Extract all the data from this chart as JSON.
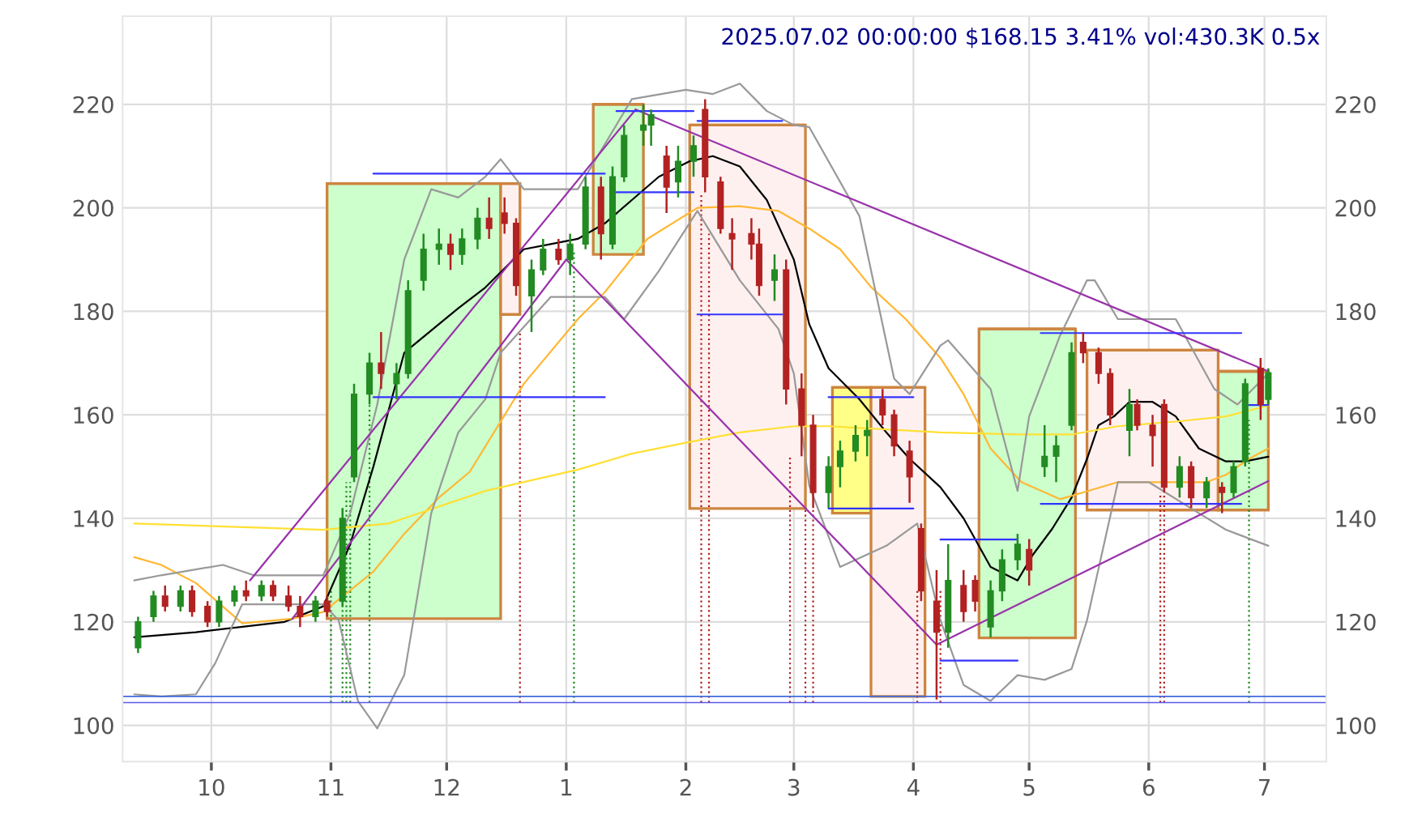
{
  "chart_data": {
    "type": "candlestick",
    "title": "2025.07.02 00:00:00 $168.15 3.41% vol:430.3K 0.5x",
    "x": [
      "2024-09-12",
      "2024-09-16",
      "2024-09-19",
      "2024-09-23",
      "2024-09-26",
      "2024-09-30",
      "2024-10-03",
      "2024-10-07",
      "2024-10-10",
      "2024-10-14",
      "2024-10-17",
      "2024-10-21",
      "2024-10-24",
      "2024-10-28",
      "2024-10-31",
      "2024-11-04",
      "2024-11-07",
      "2024-11-11",
      "2024-11-14",
      "2024-11-18",
      "2024-11-21",
      "2024-11-25",
      "2024-11-29",
      "2024-12-02",
      "2024-12-05",
      "2024-12-09",
      "2024-12-12",
      "2024-12-16",
      "2024-12-19",
      "2024-12-23",
      "2024-12-26",
      "2024-12-30",
      "2025-01-02",
      "2025-01-06",
      "2025-01-10",
      "2025-01-13",
      "2025-01-16",
      "2025-01-21",
      "2025-01-23",
      "2025-01-27",
      "2025-01-30",
      "2025-02-03",
      "2025-02-06",
      "2025-02-10",
      "2025-02-13",
      "2025-02-18",
      "2025-02-20",
      "2025-02-24",
      "2025-02-27",
      "2025-03-03",
      "2025-03-06",
      "2025-03-10",
      "2025-03-13",
      "2025-03-17",
      "2025-03-20",
      "2025-03-24",
      "2025-03-27",
      "2025-03-31",
      "2025-04-03",
      "2025-04-07",
      "2025-04-10",
      "2025-04-14",
      "2025-04-17",
      "2025-04-21",
      "2025-04-24",
      "2025-04-28",
      "2025-05-01",
      "2025-05-05",
      "2025-05-08",
      "2025-05-12",
      "2025-05-15",
      "2025-05-19",
      "2025-05-22",
      "2025-05-27",
      "2025-05-29",
      "2025-06-02",
      "2025-06-05",
      "2025-06-09",
      "2025-06-12",
      "2025-06-16",
      "2025-06-20",
      "2025-06-23",
      "2025-06-26",
      "2025-06-30",
      "2025-07-02"
    ],
    "ohlc": [
      [
        115,
        121,
        114,
        120
      ],
      [
        121,
        126,
        120,
        125
      ],
      [
        125,
        127,
        122,
        123
      ],
      [
        123,
        127,
        122,
        126
      ],
      [
        126,
        127,
        121,
        122
      ],
      [
        123,
        124,
        119,
        120
      ],
      [
        120,
        125,
        119,
        124
      ],
      [
        124,
        127,
        123,
        126
      ],
      [
        126,
        128,
        124,
        125
      ],
      [
        125,
        128,
        124,
        127
      ],
      [
        127,
        128,
        124,
        125
      ],
      [
        125,
        127,
        122,
        123
      ],
      [
        123,
        125,
        119,
        121
      ],
      [
        121,
        125,
        120,
        124
      ],
      [
        124,
        125,
        121,
        122
      ],
      [
        124,
        142,
        123,
        140
      ],
      [
        148,
        166,
        147,
        164
      ],
      [
        164,
        172,
        162,
        170
      ],
      [
        170,
        176,
        165,
        168
      ],
      [
        166,
        170,
        163,
        168
      ],
      [
        168,
        186,
        167,
        184
      ],
      [
        186,
        195,
        184,
        192
      ],
      [
        192,
        196,
        189,
        193
      ],
      [
        193,
        195,
        188,
        191
      ],
      [
        191,
        196,
        189,
        194
      ],
      [
        194,
        200,
        192,
        198
      ],
      [
        198,
        202,
        194,
        196
      ],
      [
        199,
        202,
        195,
        197
      ],
      [
        197,
        198,
        183,
        185
      ],
      [
        183,
        190,
        176,
        188
      ],
      [
        188,
        194,
        187,
        192
      ],
      [
        192,
        194,
        189,
        190
      ],
      [
        190,
        195,
        187,
        193
      ],
      [
        193,
        206,
        192,
        204
      ],
      [
        204,
        206,
        190,
        195
      ],
      [
        193,
        208,
        192,
        206
      ],
      [
        206,
        216,
        205,
        214
      ],
      [
        215,
        220,
        212,
        216
      ],
      [
        216,
        219,
        212,
        218
      ],
      [
        210,
        212,
        199,
        204
      ],
      [
        205,
        212,
        202,
        209
      ],
      [
        209,
        214,
        206,
        212
      ],
      [
        219,
        221,
        203,
        206
      ],
      [
        205,
        206,
        195,
        196
      ],
      [
        195,
        198,
        188,
        194
      ],
      [
        195,
        198,
        190,
        193
      ],
      [
        193,
        196,
        183,
        185
      ],
      [
        186,
        191,
        182,
        188
      ],
      [
        188,
        190,
        162,
        165
      ],
      [
        165,
        168,
        152,
        158
      ],
      [
        158,
        160,
        142,
        145
      ],
      [
        145,
        152,
        142,
        150
      ],
      [
        150,
        155,
        146,
        153
      ],
      [
        153,
        158,
        151,
        156
      ],
      [
        156,
        159,
        152,
        157
      ],
      [
        163,
        165,
        158,
        160
      ],
      [
        160,
        161,
        152,
        154
      ],
      [
        153,
        155,
        143,
        148
      ],
      [
        138,
        139,
        124,
        126
      ],
      [
        124,
        130,
        105,
        118
      ],
      [
        118,
        135,
        115,
        128
      ],
      [
        127,
        130,
        120,
        122
      ],
      [
        128,
        129,
        122,
        124
      ],
      [
        119,
        128,
        117,
        126
      ],
      [
        126,
        134,
        124,
        132
      ],
      [
        132,
        137,
        130,
        135
      ],
      [
        134,
        136,
        127,
        130
      ],
      [
        150,
        158,
        148,
        152
      ],
      [
        152,
        156,
        147,
        154
      ],
      [
        158,
        174,
        157,
        172
      ],
      [
        174,
        176,
        170,
        172
      ],
      [
        172,
        173,
        166,
        168
      ],
      [
        168,
        169,
        158,
        160
      ],
      [
        157,
        165,
        152,
        162
      ],
      [
        162,
        163,
        157,
        158
      ],
      [
        158,
        160,
        150,
        156
      ],
      [
        162,
        163,
        145,
        146
      ],
      [
        146,
        152,
        144,
        150
      ],
      [
        150,
        151,
        142,
        144
      ],
      [
        144,
        148,
        142,
        147
      ],
      [
        146,
        147,
        141,
        145
      ],
      [
        145,
        151,
        144,
        150
      ],
      [
        151,
        167,
        150,
        166
      ],
      [
        169,
        171,
        159,
        162
      ],
      [
        163,
        169,
        162,
        168.15
      ]
    ],
    "colors": [
      "#228b22",
      "#228b22",
      "#b22222",
      "#228b22",
      "#b22222",
      "#b22222",
      "#228b22",
      "#228b22",
      "#b22222",
      "#228b22",
      "#b22222",
      "#b22222",
      "#b22222",
      "#228b22",
      "#b22222",
      "#228b22",
      "#228b22",
      "#228b22",
      "#b22222",
      "#228b22",
      "#228b22",
      "#228b22",
      "#228b22",
      "#b22222",
      "#228b22",
      "#228b22",
      "#b22222",
      "#b22222",
      "#b22222",
      "#228b22",
      "#228b22",
      "#b22222",
      "#228b22",
      "#228b22",
      "#b22222",
      "#228b22",
      "#228b22",
      "#228b22",
      "#228b22",
      "#b22222",
      "#228b22",
      "#228b22",
      "#b22222",
      "#b22222",
      "#b22222",
      "#b22222",
      "#b22222",
      "#228b22",
      "#b22222",
      "#b22222",
      "#b22222",
      "#228b22",
      "#228b22",
      "#228b22",
      "#228b22",
      "#b22222",
      "#b22222",
      "#b22222",
      "#b22222",
      "#b22222",
      "#228b22",
      "#b22222",
      "#b22222",
      "#228b22",
      "#228b22",
      "#228b22",
      "#b22222",
      "#228b22",
      "#228b22",
      "#228b22",
      "#b22222",
      "#b22222",
      "#b22222",
      "#228b22",
      "#b22222",
      "#b22222",
      "#b22222",
      "#228b22",
      "#b22222",
      "#228b22",
      "#b22222",
      "#228b22",
      "#228b22",
      "#b22222",
      "#228b22"
    ],
    "series": [
      {
        "type": "bar",
        "x": [
          "2024-11-22T12:00",
          "2024-12-17T12:00",
          "2025-01-14T12:00",
          "2025-02-17",
          "2025-03-16",
          "2025-03-28",
          "2025-04-30T12:00",
          "2025-06-02",
          "2025-06-25T12:00"
        ],
        "xerrors": [
          22.5,
          2.5,
          6.5,
          15,
          5,
          7,
          12.5,
          17,
          6.5
        ],
        "base": [
          120.6,
          179.4,
          191,
          141.9,
          141,
          105.6,
          116.9,
          141.6,
          141.6
        ],
        "values": [
          84.1,
          25.3,
          29,
          74.1,
          24.3,
          59.7,
          59.7,
          30.9,
          26.8
        ],
        "colors": [
          "#ccffcc",
          "#fff0f0",
          "#ccffcc",
          "#fff0f0",
          "#ffff88",
          "#fff0f0",
          "#ccffcc",
          "#fff0f0",
          "#ccffcc"
        ]
      },
      {
        "type": "line",
        "color": "#000000",
        "x": [
          "2024-09-11",
          "2024-09-27",
          "2024-10-20",
          "2024-10-30",
          "2024-11-06",
          "2024-11-12",
          "2024-11-20",
          "2024-12-04",
          "2024-12-11",
          "2024-12-21",
          "2024-12-28",
          "2025-01-04",
          "2025-01-11",
          "2025-01-18",
          "2025-01-25",
          "2025-02-02",
          "2025-02-08",
          "2025-02-15",
          "2025-02-22",
          "2025-03-01",
          "2025-03-05",
          "2025-03-10",
          "2025-03-18",
          "2025-03-25",
          "2025-03-31",
          "2025-04-08",
          "2025-04-14",
          "2025-04-21",
          "2025-04-28",
          "2025-05-02",
          "2025-05-07",
          "2025-05-12",
          "2025-05-16",
          "2025-05-19",
          "2025-05-23",
          "2025-05-27",
          "2025-06-02",
          "2025-06-08",
          "2025-06-14",
          "2025-06-21",
          "2025-06-26",
          "2025-07-02"
        ],
        "values": [
          117,
          118,
          120,
          123,
          135,
          150,
          172,
          180.6,
          184.6,
          192,
          193,
          194,
          197,
          201.5,
          206,
          209,
          210,
          208,
          201.5,
          190,
          177.5,
          169,
          163,
          156.6,
          151.5,
          146,
          140,
          130.6,
          128,
          133,
          138,
          144,
          151.5,
          158,
          159.7,
          162.5,
          162.5,
          159.7,
          153.5,
          151,
          151,
          151.9
        ]
      },
      {
        "type": "line",
        "color": "#ffb733",
        "x": [
          "2024-09-11",
          "2024-09-18",
          "2024-09-27",
          "2024-10-09",
          "2024-10-22",
          "2024-10-30",
          "2024-11-12",
          "2024-11-20",
          "2024-11-29",
          "2024-12-07",
          "2024-12-21",
          "2025-01-04",
          "2025-01-11",
          "2025-01-22",
          "2025-02-04",
          "2025-02-15",
          "2025-02-25",
          "2025-03-05",
          "2025-03-13",
          "2025-03-21",
          "2025-03-30",
          "2025-04-08",
          "2025-04-14",
          "2025-04-21",
          "2025-04-29",
          "2025-05-09",
          "2025-05-15",
          "2025-05-24",
          "2025-06-08",
          "2025-06-16",
          "2025-06-21",
          "2025-06-27",
          "2025-07-02"
        ],
        "values": [
          132.5,
          131,
          127.5,
          119.7,
          120.6,
          121.9,
          129.7,
          137,
          144,
          149,
          166,
          178.5,
          183.7,
          194,
          200,
          200.3,
          199.4,
          196,
          192,
          184.7,
          178.5,
          171,
          164,
          153.5,
          147,
          143.7,
          145,
          147,
          147,
          147,
          148.4,
          151.5,
          153.5
        ]
      },
      {
        "type": "line",
        "color": "#ffe033",
        "x": [
          "2024-09-11",
          "2024-10-30",
          "2024-11-16",
          "2024-12-11",
          "2025-01-04",
          "2025-01-18",
          "2025-02-01",
          "2025-02-15",
          "2025-03-01",
          "2025-03-10",
          "2025-04-08",
          "2025-04-28",
          "2025-05-12",
          "2025-05-24",
          "2025-06-08",
          "2025-06-21",
          "2025-07-02"
        ],
        "values": [
          139,
          137.8,
          139,
          145.3,
          149.4,
          152.5,
          154.6,
          156.6,
          157.8,
          157.8,
          156.6,
          156.2,
          156.2,
          157.8,
          158.7,
          159.7,
          161.8
        ]
      },
      {
        "type": "line",
        "color": "#999999",
        "x": [
          "2024-09-11",
          "2024-09-18",
          "2024-10-04",
          "2024-10-12",
          "2024-10-30",
          "2024-11-06",
          "2024-11-13",
          "2024-11-20",
          "2024-11-27",
          "2024-12-04",
          "2024-12-11",
          "2024-12-15",
          "2024-12-21",
          "2025-01-04",
          "2025-01-18",
          "2025-02-01",
          "2025-02-08",
          "2025-02-15",
          "2025-02-22",
          "2025-03-01",
          "2025-03-05",
          "2025-03-18",
          "2025-03-27",
          "2025-03-31",
          "2025-04-08",
          "2025-04-10",
          "2025-04-21",
          "2025-04-28",
          "2025-05-01",
          "2025-05-09",
          "2025-05-16",
          "2025-05-18",
          "2025-05-24",
          "2025-06-08",
          "2025-06-18",
          "2025-06-24",
          "2025-07-02"
        ],
        "values": [
          128,
          129,
          131,
          129,
          129,
          141,
          162,
          190,
          203.6,
          202,
          206,
          209.4,
          203.6,
          203.6,
          221,
          222.8,
          222,
          224,
          218.7,
          216,
          215.6,
          198.4,
          167,
          164,
          173.4,
          174.4,
          165,
          145.3,
          159.7,
          175.3,
          186,
          186,
          178.5,
          178.5,
          165,
          162,
          168
        ]
      },
      {
        "type": "line",
        "color": "#999999",
        "x": [
          "2024-09-11",
          "2024-09-18",
          "2024-09-27",
          "2024-10-02",
          "2024-10-09",
          "2024-10-30",
          "2024-11-03",
          "2024-11-08",
          "2024-11-13",
          "2024-11-20",
          "2024-11-27",
          "2024-12-04",
          "2024-12-11",
          "2024-12-15",
          "2024-12-28",
          "2025-01-11",
          "2025-01-16",
          "2025-01-25",
          "2025-02-04",
          "2025-02-15",
          "2025-02-25",
          "2025-03-01",
          "2025-03-05",
          "2025-03-13",
          "2025-03-25",
          "2025-04-02",
          "2025-04-08",
          "2025-04-14",
          "2025-04-21",
          "2025-04-28",
          "2025-05-05",
          "2025-05-12",
          "2025-05-16",
          "2025-05-24",
          "2025-06-01",
          "2025-06-14",
          "2025-06-21",
          "2025-07-02"
        ],
        "values": [
          106,
          105.6,
          106,
          112,
          123.4,
          123.4,
          120.3,
          104.7,
          99.4,
          109.7,
          141,
          156.6,
          163,
          172,
          182.8,
          182.8,
          178.5,
          187.8,
          199.4,
          186,
          176.6,
          168,
          146.3,
          130.6,
          134.7,
          139,
          120.3,
          107.8,
          104.7,
          109.7,
          108.8,
          110.9,
          120.3,
          147,
          147,
          141,
          137.8,
          134.7
        ]
      },
      {
        "type": "line",
        "color": "#9933aa",
        "x": [
          "2024-10-11",
          "2025-01-19"
        ],
        "values": [
          128,
          219
        ]
      },
      {
        "type": "line",
        "color": "#9933aa",
        "x": [
          "2024-10-22",
          "2025-01-01"
        ],
        "values": [
          120.6,
          190
        ]
      },
      {
        "type": "line",
        "color": "#9933aa",
        "x": [
          "2025-01-01",
          "2025-04-07"
        ],
        "values": [
          190,
          115.6
        ]
      },
      {
        "type": "line",
        "color": "#9933aa",
        "x": [
          "2025-01-19",
          "2025-07-02"
        ],
        "values": [
          219,
          168.4
        ]
      },
      {
        "type": "line",
        "color": "#9933aa",
        "x": [
          "2025-04-07",
          "2025-07-02"
        ],
        "values": [
          115.6,
          147.2
        ]
      },
      {
        "type": "line",
        "color": "#3333ff",
        "x": [
          "2024-11-12",
          "2025-01-11"
        ],
        "values": [
          206.6,
          206.6
        ]
      },
      {
        "type": "line",
        "color": "#3333ff",
        "x": [
          "2024-11-12",
          "2025-01-11"
        ],
        "values": [
          163.4,
          163.4
        ]
      },
      {
        "type": "line",
        "color": "#3333ff",
        "x": [
          "2025-01-14",
          "2025-02-03"
        ],
        "values": [
          218.7,
          218.7
        ]
      },
      {
        "type": "line",
        "color": "#3333ff",
        "x": [
          "2025-01-14",
          "2025-02-03"
        ],
        "values": [
          203,
          203
        ]
      },
      {
        "type": "line",
        "color": "#3333ff",
        "x": [
          "2025-02-04",
          "2025-02-26"
        ],
        "values": [
          216.8,
          216.8
        ]
      },
      {
        "type": "line",
        "color": "#3333ff",
        "x": [
          "2025-02-04",
          "2025-02-26"
        ],
        "values": [
          179.4,
          179.4
        ]
      },
      {
        "type": "line",
        "color": "#3333ff",
        "x": [
          "2025-03-10",
          "2025-04-01"
        ],
        "values": [
          163.4,
          163.4
        ]
      },
      {
        "type": "line",
        "color": "#3333ff",
        "x": [
          "2025-03-10",
          "2025-04-01"
        ],
        "values": [
          141.9,
          141.9
        ]
      },
      {
        "type": "line",
        "color": "#3333ff",
        "x": [
          "2025-04-08",
          "2025-04-28"
        ],
        "values": [
          135.9,
          135.9
        ]
      },
      {
        "type": "line",
        "color": "#3333ff",
        "x": [
          "2025-04-08",
          "2025-04-28"
        ],
        "values": [
          112.5,
          112.5
        ]
      },
      {
        "type": "line",
        "color": "#3333ff",
        "x": [
          "2025-05-04",
          "2025-06-25"
        ],
        "values": [
          175.8,
          175.8
        ]
      },
      {
        "type": "line",
        "color": "#3333ff",
        "x": [
          "2025-05-04",
          "2025-06-25"
        ],
        "values": [
          142.8,
          142.8
        ]
      },
      {
        "type": "line",
        "color": "#3333ff",
        "x": [
          "2025-06-27",
          "2025-07-02"
        ],
        "values": [
          161.9,
          161.9
        ]
      }
    ],
    "ref_lines": [
      {
        "axis": "y",
        "value": 105.6,
        "color": "#4169e1",
        "line_style": "solid"
      },
      {
        "axis": "y",
        "value": 104.4,
        "color": "#5a5ae6",
        "line_style": "solid"
      },
      {
        "axis": "x",
        "value": "2024-11-01",
        "color": "#228b22",
        "line_style": "dotted"
      },
      {
        "axis": "x",
        "value": "2024-11-04",
        "color": "#228b22",
        "line_style": "dotted"
      },
      {
        "axis": "x",
        "value": "2024-11-05",
        "color": "#228b22",
        "line_style": "dotted"
      },
      {
        "axis": "x",
        "value": "2024-11-06",
        "color": "#228b22",
        "line_style": "dotted"
      },
      {
        "axis": "x",
        "value": "2024-11-11",
        "color": "#228b22",
        "line_style": "dotted"
      },
      {
        "axis": "x",
        "value": "2024-12-20",
        "color": "#b22222",
        "line_style": "dotted"
      },
      {
        "axis": "x",
        "value": "2025-01-03",
        "color": "#228b22",
        "line_style": "dotted"
      },
      {
        "axis": "x",
        "value": "2025-02-05",
        "color": "#b22222",
        "line_style": "dotted"
      },
      {
        "axis": "x",
        "value": "2025-02-07",
        "color": "#b22222",
        "line_style": "dotted"
      },
      {
        "axis": "x",
        "value": "2025-02-28",
        "color": "#b22222",
        "line_style": "dotted"
      },
      {
        "axis": "x",
        "value": "2025-03-04",
        "color": "#b22222",
        "line_style": "dotted"
      },
      {
        "axis": "x",
        "value": "2025-03-06",
        "color": "#b22222",
        "line_style": "dotted"
      },
      {
        "axis": "x",
        "value": "2025-04-02",
        "color": "#b22222",
        "line_style": "dotted"
      },
      {
        "axis": "x",
        "value": "2025-04-08",
        "color": "#b22222",
        "line_style": "dotted"
      },
      {
        "axis": "x",
        "value": "2025-06-04",
        "color": "#b22222",
        "line_style": "dotted"
      },
      {
        "axis": "x",
        "value": "2025-06-05",
        "color": "#b22222",
        "line_style": "dotted"
      },
      {
        "axis": "x",
        "value": "2025-06-27",
        "color": "#228b22",
        "line_style": "dotted"
      }
    ],
    "xlim": [
      "2024-09-08",
      "2025-07-17"
    ],
    "xticks": [
      {
        "value": "2024-10-01",
        "label": "10"
      },
      {
        "value": "2024-11-01",
        "label": "11"
      },
      {
        "value": "2024-12-01",
        "label": "12"
      },
      {
        "value": "2025-01-01",
        "label": "1"
      },
      {
        "value": "2025-02-01",
        "label": "2"
      },
      {
        "value": "2025-03-01",
        "label": "3"
      },
      {
        "value": "2025-04-01",
        "label": "4"
      },
      {
        "value": "2025-05-01",
        "label": "5"
      },
      {
        "value": "2025-06-01",
        "label": "6"
      },
      {
        "value": "2025-07-01",
        "label": "7"
      }
    ],
    "ylim": [
      93,
      237
    ],
    "yticks": [
      100,
      120,
      140,
      160,
      180,
      200,
      220
    ],
    "y2lim": [
      93,
      237
    ],
    "y2ticks": [
      100,
      120,
      140,
      160,
      180,
      200,
      220
    ],
    "grid": true,
    "marker": "none"
  }
}
